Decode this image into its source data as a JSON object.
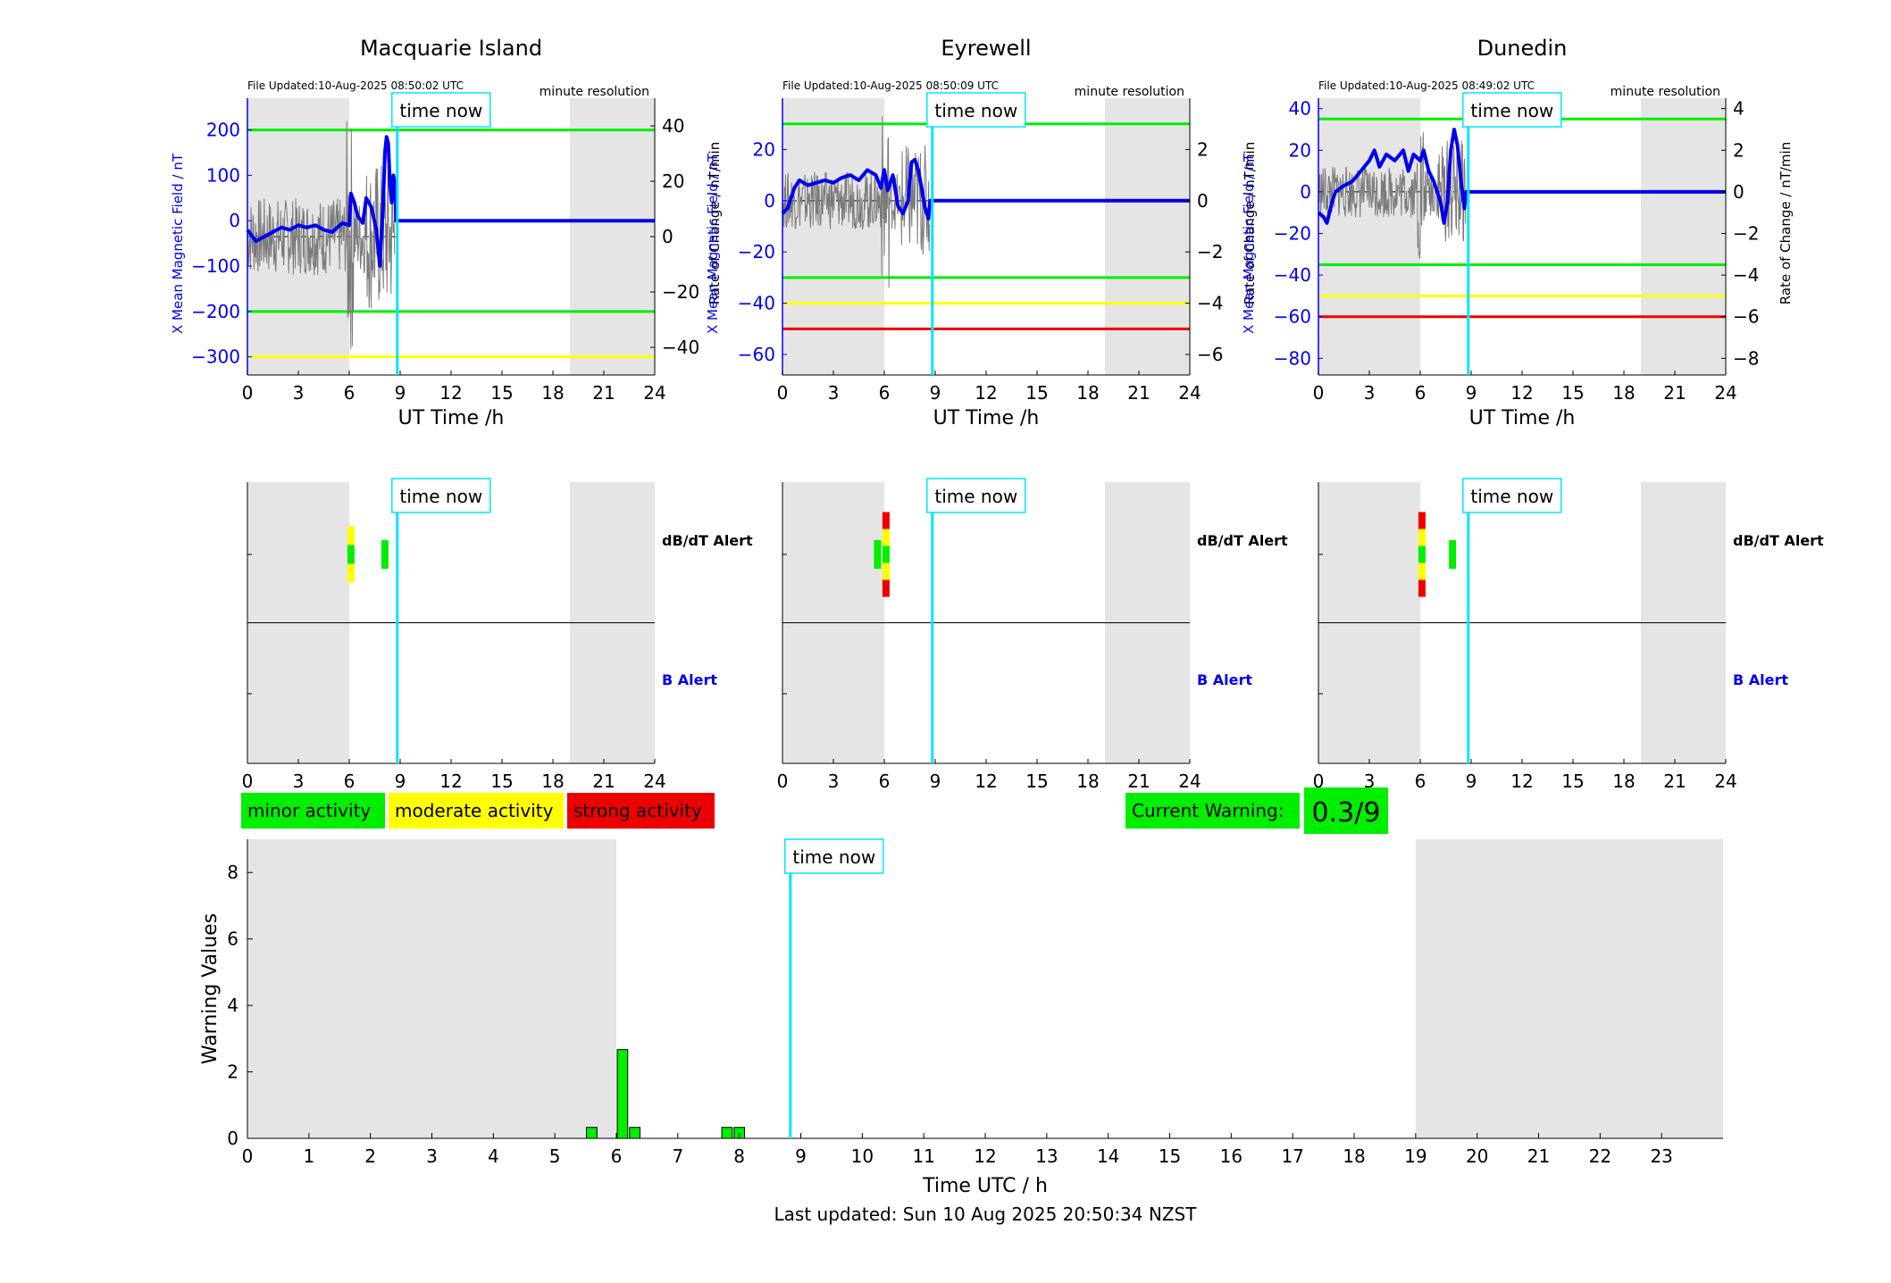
{
  "stations": [
    {
      "name": "Macquarie Island",
      "file_updated": "File Updated:10-Aug-2025 08:50:02 UTC",
      "resolution": "minute resolution",
      "ylabel_left": "X Mean Magnetic Field / nT",
      "ylabel_right": "Rate of Change / nT/min",
      "xlabel": "UT Time /h",
      "yticks_left": [
        200,
        100,
        0,
        -100,
        -200,
        -300
      ],
      "ylim_left": [
        -340,
        270
      ],
      "yticks_right": [
        40,
        20,
        0,
        -20,
        -40
      ],
      "ylim_right": [
        -50,
        50
      ],
      "threshold_lines": [
        {
          "value": 200,
          "color": "#00ee00"
        },
        {
          "value": -200,
          "color": "#00ee00"
        },
        {
          "value": -300,
          "color": "#ffff00"
        }
      ],
      "field_trace": [
        [
          0,
          -20
        ],
        [
          0.5,
          -45
        ],
        [
          1,
          -35
        ],
        [
          1.5,
          -25
        ],
        [
          2,
          -15
        ],
        [
          2.5,
          -20
        ],
        [
          3,
          -10
        ],
        [
          3.5,
          -15
        ],
        [
          4,
          -10
        ],
        [
          4.5,
          -20
        ],
        [
          5,
          -25
        ],
        [
          5.3,
          -15
        ],
        [
          5.6,
          -5
        ],
        [
          6,
          -10
        ],
        [
          6.1,
          60
        ],
        [
          6.3,
          40
        ],
        [
          6.5,
          10
        ],
        [
          6.8,
          -5
        ],
        [
          7,
          50
        ],
        [
          7.3,
          30
        ],
        [
          7.6,
          -20
        ],
        [
          7.8,
          -100
        ],
        [
          8,
          40
        ],
        [
          8.1,
          150
        ],
        [
          8.2,
          185
        ],
        [
          8.3,
          170
        ],
        [
          8.4,
          80
        ],
        [
          8.5,
          40
        ],
        [
          8.6,
          100
        ],
        [
          8.7,
          80
        ],
        [
          8.75,
          0
        ],
        [
          24,
          0
        ]
      ],
      "alert_bars": [
        {
          "hour": 6.1,
          "colors": [
            "#ffff00",
            "#00ee00",
            "#ffff00"
          ]
        },
        {
          "hour": 8.1,
          "colors": [
            "#00ee00"
          ]
        }
      ]
    },
    {
      "name": "Eyrewell",
      "file_updated": "File Updated:10-Aug-2025 08:50:09 UTC",
      "resolution": "minute resolution",
      "ylabel_left": "X Mean Magnetic Field / nT",
      "ylabel_right": "Rate of Change / nT/min",
      "xlabel": "UT Time /h",
      "yticks_left": [
        20,
        0,
        -20,
        -40,
        -60
      ],
      "ylim_left": [
        -68,
        40
      ],
      "yticks_right": [
        2,
        0,
        -2,
        -4,
        -6
      ],
      "ylim_right": [
        -6.8,
        4
      ],
      "threshold_lines": [
        {
          "value": 30,
          "color": "#00ee00"
        },
        {
          "value": -30,
          "color": "#00ee00"
        },
        {
          "value": -40,
          "color": "#ffff00"
        },
        {
          "value": -50,
          "color": "#ee0000"
        }
      ],
      "field_trace": [
        [
          0,
          -5
        ],
        [
          0.3,
          -3
        ],
        [
          0.7,
          5
        ],
        [
          1,
          8
        ],
        [
          1.5,
          6
        ],
        [
          2,
          7
        ],
        [
          2.5,
          8
        ],
        [
          3,
          7
        ],
        [
          3.5,
          9
        ],
        [
          4,
          10
        ],
        [
          4.5,
          8
        ],
        [
          5,
          12
        ],
        [
          5.5,
          10
        ],
        [
          5.8,
          5
        ],
        [
          6,
          12
        ],
        [
          6.2,
          4
        ],
        [
          6.5,
          10
        ],
        [
          6.8,
          -2
        ],
        [
          7.1,
          -5
        ],
        [
          7.4,
          0
        ],
        [
          7.6,
          15
        ],
        [
          7.8,
          16
        ],
        [
          8,
          12
        ],
        [
          8.2,
          5
        ],
        [
          8.4,
          -3
        ],
        [
          8.6,
          -7
        ],
        [
          8.7,
          0
        ],
        [
          24,
          0
        ]
      ],
      "alert_bars": [
        {
          "hour": 5.6,
          "colors": [
            "#00ee00"
          ]
        },
        {
          "hour": 6.1,
          "colors": [
            "#ee0000",
            "#ffff00",
            "#00ee00",
            "#ffff00",
            "#ee0000"
          ]
        }
      ]
    },
    {
      "name": "Dunedin",
      "file_updated": "File Updated:10-Aug-2025 08:49:02 UTC",
      "resolution": "minute resolution",
      "ylabel_left": "X Mean Magnetic Field / nT",
      "ylabel_right": "Rate of Change / nT/min",
      "xlabel": "UT Time /h",
      "yticks_left": [
        40,
        20,
        0,
        -20,
        -40,
        -60,
        -80
      ],
      "ylim_left": [
        -88,
        45
      ],
      "yticks_right": [
        4,
        2,
        0,
        -2,
        -4,
        -6,
        -8
      ],
      "ylim_right": [
        -8.8,
        4.5
      ],
      "threshold_lines": [
        {
          "value": 35,
          "color": "#00ee00"
        },
        {
          "value": -35,
          "color": "#00ee00"
        },
        {
          "value": -50,
          "color": "#ffff00"
        },
        {
          "value": -60,
          "color": "#ee0000"
        }
      ],
      "field_trace": [
        [
          0,
          -10
        ],
        [
          0.3,
          -12
        ],
        [
          0.5,
          -15
        ],
        [
          0.8,
          -5
        ],
        [
          1,
          0
        ],
        [
          1.5,
          3
        ],
        [
          2,
          5
        ],
        [
          2.5,
          10
        ],
        [
          3,
          15
        ],
        [
          3.3,
          20
        ],
        [
          3.6,
          12
        ],
        [
          4,
          18
        ],
        [
          4.5,
          15
        ],
        [
          5,
          20
        ],
        [
          5.3,
          10
        ],
        [
          5.6,
          18
        ],
        [
          6,
          15
        ],
        [
          6.2,
          20
        ],
        [
          6.5,
          10
        ],
        [
          6.8,
          5
        ],
        [
          7,
          0
        ],
        [
          7.2,
          -5
        ],
        [
          7.4,
          -15
        ],
        [
          7.6,
          -5
        ],
        [
          7.8,
          20
        ],
        [
          8,
          30
        ],
        [
          8.2,
          22
        ],
        [
          8.4,
          5
        ],
        [
          8.6,
          -8
        ],
        [
          8.7,
          0
        ],
        [
          24,
          0
        ]
      ],
      "alert_bars": [
        {
          "hour": 6.1,
          "colors": [
            "#ee0000",
            "#ffff00",
            "#00ee00",
            "#ffff00",
            "#ee0000"
          ]
        },
        {
          "hour": 7.9,
          "colors": [
            "#00ee00"
          ]
        }
      ]
    }
  ],
  "alert_labels": {
    "dbdt": "dB/dT Alert",
    "b": "B Alert"
  },
  "time_now_label": "time now",
  "time_now_hour": 8.83,
  "shaded_hours": [
    [
      0,
      6
    ],
    [
      19,
      24
    ]
  ],
  "x_ticks_station": [
    0,
    3,
    6,
    9,
    12,
    15,
    18,
    21,
    24
  ],
  "legend": [
    {
      "label": "minor activity",
      "color": "#00ee00"
    },
    {
      "label": "moderate activity",
      "color": "#ffff00"
    },
    {
      "label": "strong activity",
      "color": "#ee0000"
    }
  ],
  "current_warning": {
    "label": "Current Warning:",
    "value": "0.3/9"
  },
  "chart_data": {
    "type": "bar",
    "ylabel": "Warning Values",
    "xlabel": "Time UTC / h",
    "ylim": [
      0,
      9
    ],
    "yticks": [
      0,
      2,
      4,
      6,
      8
    ],
    "xticks": [
      0,
      1,
      2,
      3,
      4,
      5,
      6,
      7,
      8,
      9,
      10,
      11,
      12,
      13,
      14,
      15,
      16,
      17,
      18,
      19,
      20,
      21,
      22,
      23
    ],
    "xlim": [
      0,
      24
    ],
    "bar_width": 0.17,
    "x": [
      5.6,
      6.1,
      6.3,
      7.8,
      8.0
    ],
    "values": [
      0.33,
      2.67,
      0.33,
      0.33,
      0.33
    ],
    "color": "#00ee00"
  },
  "last_updated": "Last updated: Sun 10 Aug 2025 20:50:34 NZST"
}
